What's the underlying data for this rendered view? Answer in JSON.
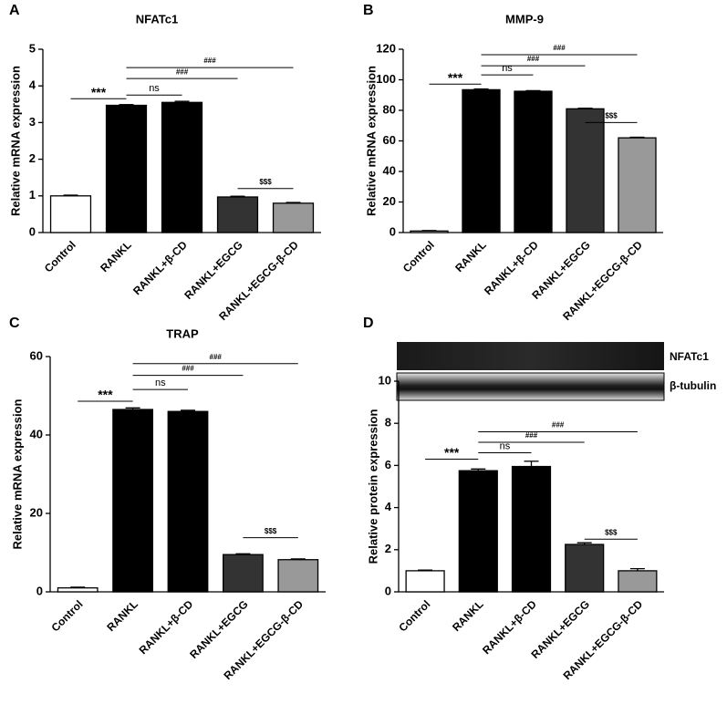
{
  "chart_data": [
    {
      "type": "bar",
      "panel": "A",
      "title": "NFATc1",
      "ylabel": "Relative mRNA expression",
      "categories": [
        "Control",
        "RANKL",
        "RANKL+β-CD",
        "RANKL+EGCG",
        "RANKL+EGCG-β-CD"
      ],
      "values": [
        1.0,
        3.47,
        3.55,
        0.97,
        0.8
      ],
      "errors": [
        0.02,
        0.02,
        0.03,
        0.02,
        0.02
      ],
      "colors": [
        "#ffffff",
        "#000000",
        "#000000",
        "#333333",
        "#999999"
      ],
      "ylim": [
        0,
        5
      ],
      "yticks": [
        0,
        1,
        2,
        3,
        4,
        5
      ],
      "annotations": [
        "***",
        "ns",
        "###",
        "###",
        "$$$"
      ]
    },
    {
      "type": "bar",
      "panel": "B",
      "title": "MMP-9",
      "ylabel": "Relative mRNA expression",
      "categories": [
        "Control",
        "RANKL",
        "RANKL+β-CD",
        "RANKL+EGCG",
        "RANKL+EGCG-β-CD"
      ],
      "values": [
        1,
        93.5,
        92.5,
        81,
        62
      ],
      "errors": [
        0.3,
        0.5,
        0.4,
        0.4,
        0.4
      ],
      "colors": [
        "#ffffff",
        "#000000",
        "#000000",
        "#333333",
        "#999999"
      ],
      "ylim": [
        0,
        120
      ],
      "yticks": [
        0,
        20,
        40,
        60,
        80,
        100,
        120
      ],
      "annotations": [
        "***",
        "ns",
        "###",
        "###",
        "$$$"
      ]
    },
    {
      "type": "bar",
      "panel": "C",
      "title": "TRAP",
      "ylabel": "Relative mRNA expression",
      "categories": [
        "Control",
        "RANKL",
        "RANKL+β-CD",
        "RANKL+EGCG",
        "RANKL+EGCG-β-CD"
      ],
      "values": [
        1,
        46.5,
        46,
        9.5,
        8.2
      ],
      "errors": [
        0.2,
        0.4,
        0.3,
        0.2,
        0.2
      ],
      "colors": [
        "#ffffff",
        "#000000",
        "#000000",
        "#333333",
        "#999999"
      ],
      "ylim": [
        0,
        60
      ],
      "yticks": [
        0,
        20,
        40,
        60
      ],
      "annotations": [
        "***",
        "ns",
        "###",
        "###",
        "$$$"
      ]
    },
    {
      "type": "bar",
      "panel": "D",
      "ylabel": "Relative protein expression",
      "blot_labels": [
        "NFATc1",
        "β-tubulin"
      ],
      "categories": [
        "Control",
        "RANKL",
        "RANKL+β-CD",
        "RANKL+EGCG",
        "RANKL+EGCG-β-CD"
      ],
      "values": [
        1.0,
        5.75,
        5.95,
        2.25,
        1.0
      ],
      "errors": [
        0.03,
        0.08,
        0.25,
        0.08,
        0.1
      ],
      "colors": [
        "#ffffff",
        "#000000",
        "#000000",
        "#333333",
        "#999999"
      ],
      "ylim": [
        0,
        10
      ],
      "yticks": [
        0,
        2,
        4,
        6,
        8,
        10
      ],
      "annotations": [
        "***",
        "ns",
        "###",
        "###",
        "$$$"
      ]
    }
  ]
}
